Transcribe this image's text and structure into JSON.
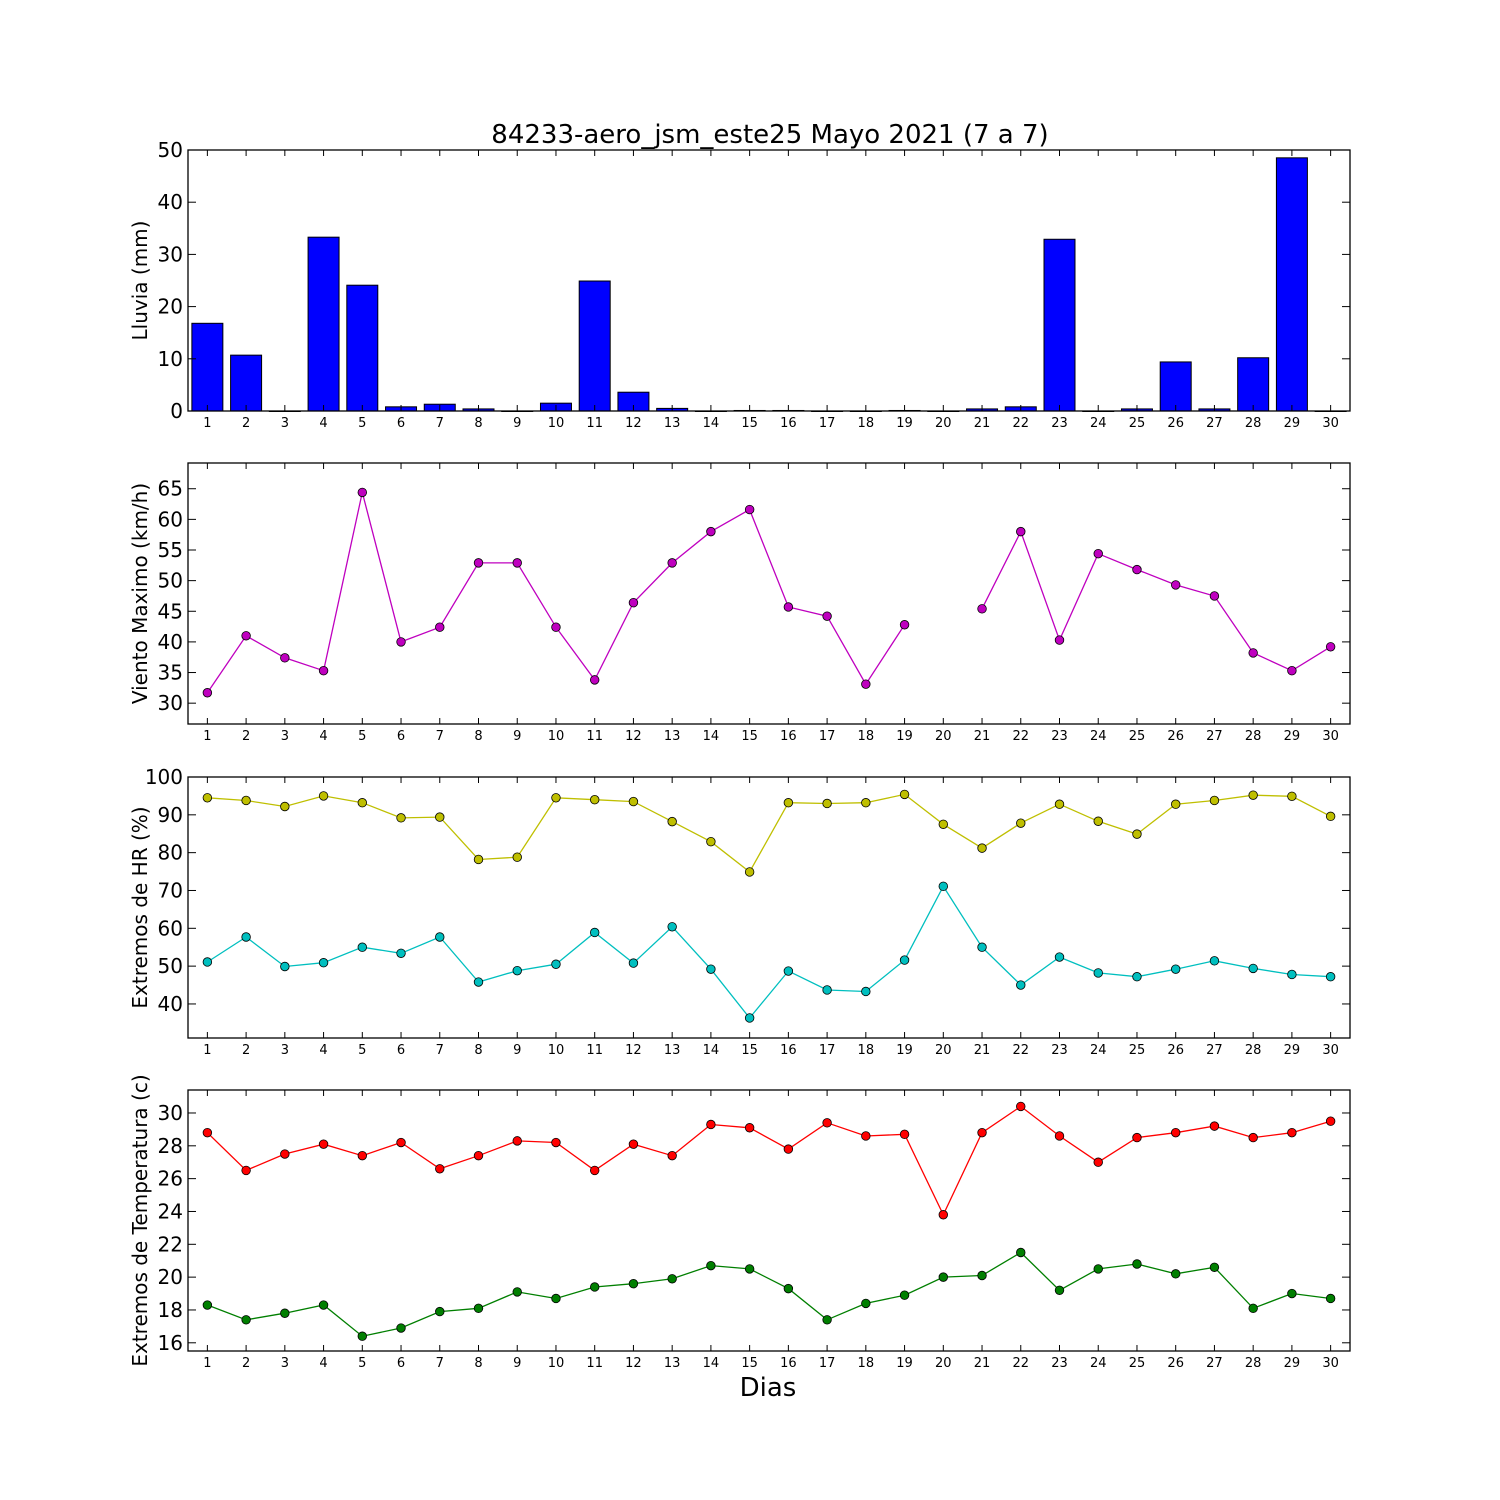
{
  "figure": {
    "title": "84233-aero_jsm_este25 Mayo 2021  (7 a 7)",
    "xlabel": "Dias"
  },
  "chart_data": [
    {
      "type": "bar",
      "ylabel": "Lluvia (mm)",
      "ylim": [
        0,
        50
      ],
      "yticks": [
        0,
        10,
        20,
        30,
        40,
        50
      ],
      "xlim": [
        0.5,
        30.5
      ],
      "xticks": [
        1,
        2,
        3,
        4,
        5,
        6,
        7,
        8,
        9,
        10,
        11,
        12,
        13,
        14,
        15,
        16,
        17,
        18,
        19,
        20,
        21,
        22,
        23,
        24,
        25,
        26,
        27,
        28,
        29,
        30
      ],
      "x": [
        1,
        2,
        3,
        4,
        5,
        6,
        7,
        8,
        9,
        10,
        11,
        12,
        13,
        14,
        15,
        16,
        17,
        18,
        19,
        20,
        21,
        22,
        23,
        24,
        25,
        26,
        27,
        28,
        29,
        30
      ],
      "series": [
        {
          "color": "#0000ff",
          "values": [
            16.8,
            10.7,
            0,
            33.3,
            24.1,
            0.8,
            1.3,
            0.4,
            0,
            1.5,
            24.9,
            3.6,
            0.5,
            0,
            0.1,
            0.1,
            0,
            0,
            0.1,
            0,
            0.4,
            0.8,
            32.9,
            0,
            0.4,
            9.4,
            0.4,
            10.2,
            48.5,
            0
          ]
        }
      ]
    },
    {
      "type": "line",
      "ylabel": "Viento Maximo (km/h)",
      "ylim": [
        26.6,
        69.2
      ],
      "yticks": [
        30,
        35,
        40,
        45,
        50,
        55,
        60,
        65
      ],
      "xlim": [
        0.5,
        30.5
      ],
      "xticks": [
        1,
        2,
        3,
        4,
        5,
        6,
        7,
        8,
        9,
        10,
        11,
        12,
        13,
        14,
        15,
        16,
        17,
        18,
        19,
        20,
        21,
        22,
        23,
        24,
        25,
        26,
        27,
        28,
        29,
        30
      ],
      "x": [
        1,
        2,
        3,
        4,
        5,
        6,
        7,
        8,
        9,
        10,
        11,
        12,
        13,
        14,
        15,
        16,
        17,
        18,
        19,
        20,
        21,
        22,
        23,
        24,
        25,
        26,
        27,
        28,
        29,
        30
      ],
      "series": [
        {
          "color": "#bf00bf",
          "values": [
            31.7,
            41.0,
            37.4,
            35.3,
            64.4,
            40.0,
            42.4,
            52.9,
            52.9,
            42.4,
            33.8,
            46.4,
            52.9,
            58.0,
            61.6,
            45.7,
            44.2,
            33.1,
            42.8,
            null,
            45.4,
            58.0,
            40.3,
            54.4,
            51.8,
            49.3,
            47.5,
            38.2,
            35.3,
            39.2
          ]
        }
      ]
    },
    {
      "type": "line",
      "ylabel": "Extremos de HR (%)",
      "ylim": [
        31,
        100
      ],
      "yticks": [
        40,
        50,
        60,
        70,
        80,
        90,
        100
      ],
      "xlim": [
        0.5,
        30.5
      ],
      "xticks": [
        1,
        2,
        3,
        4,
        5,
        6,
        7,
        8,
        9,
        10,
        11,
        12,
        13,
        14,
        15,
        16,
        17,
        18,
        19,
        20,
        21,
        22,
        23,
        24,
        25,
        26,
        27,
        28,
        29,
        30
      ],
      "x": [
        1,
        2,
        3,
        4,
        5,
        6,
        7,
        8,
        9,
        10,
        11,
        12,
        13,
        14,
        15,
        16,
        17,
        18,
        19,
        20,
        21,
        22,
        23,
        24,
        25,
        26,
        27,
        28,
        29,
        30
      ],
      "series": [
        {
          "color": "#bfbf00",
          "values": [
            94.5,
            93.8,
            92.2,
            95.0,
            93.2,
            89.2,
            89.4,
            78.2,
            78.8,
            94.5,
            94.0,
            93.5,
            88.2,
            82.9,
            74.9,
            93.2,
            93.0,
            93.2,
            95.4,
            87.5,
            81.2,
            87.8,
            92.8,
            88.3,
            84.9,
            92.8,
            93.8,
            95.2,
            94.9,
            89.6
          ]
        },
        {
          "color": "#00bfbf",
          "values": [
            51.1,
            57.7,
            49.9,
            50.9,
            55.0,
            53.4,
            57.7,
            45.8,
            48.8,
            50.5,
            58.9,
            50.8,
            60.4,
            49.2,
            36.3,
            48.7,
            43.7,
            43.3,
            51.6,
            71.1,
            55.0,
            45.0,
            52.4,
            48.2,
            47.2,
            49.2,
            51.4,
            49.4,
            47.8,
            47.2
          ]
        }
      ]
    },
    {
      "type": "line",
      "ylabel": "Extremos de Temperatura (c)",
      "ylim": [
        15.5,
        31.4
      ],
      "yticks": [
        16,
        18,
        20,
        22,
        24,
        26,
        28,
        30
      ],
      "xlim": [
        0.5,
        30.5
      ],
      "xticks": [
        1,
        2,
        3,
        4,
        5,
        6,
        7,
        8,
        9,
        10,
        11,
        12,
        13,
        14,
        15,
        16,
        17,
        18,
        19,
        20,
        21,
        22,
        23,
        24,
        25,
        26,
        27,
        28,
        29,
        30
      ],
      "x": [
        1,
        2,
        3,
        4,
        5,
        6,
        7,
        8,
        9,
        10,
        11,
        12,
        13,
        14,
        15,
        16,
        17,
        18,
        19,
        20,
        21,
        22,
        23,
        24,
        25,
        26,
        27,
        28,
        29,
        30
      ],
      "series": [
        {
          "color": "#ff0000",
          "values": [
            28.8,
            26.5,
            27.5,
            28.1,
            27.4,
            28.2,
            26.6,
            27.4,
            28.3,
            28.2,
            26.5,
            28.1,
            27.4,
            29.3,
            29.1,
            27.8,
            29.4,
            28.6,
            28.7,
            23.8,
            28.8,
            30.4,
            28.6,
            27.0,
            28.5,
            28.8,
            29.2,
            28.5,
            28.8,
            29.5
          ]
        },
        {
          "color": "#007f00",
          "values": [
            18.3,
            17.4,
            17.8,
            18.3,
            16.4,
            16.9,
            17.9,
            18.1,
            19.1,
            18.7,
            19.4,
            19.6,
            19.9,
            20.7,
            20.5,
            19.3,
            17.4,
            18.4,
            18.9,
            20.0,
            20.1,
            21.5,
            19.2,
            20.5,
            20.8,
            20.2,
            20.6,
            18.1,
            19.0,
            18.7
          ]
        }
      ]
    }
  ]
}
